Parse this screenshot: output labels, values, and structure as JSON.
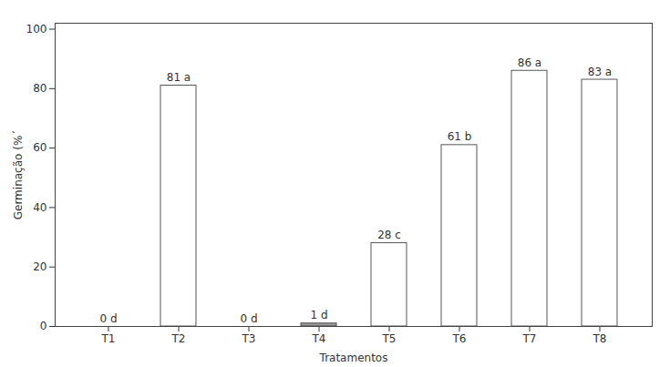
{
  "chart_data": {
    "type": "bar",
    "xlabel": "Tratamentos",
    "ylabel": "Germinação (%´",
    "categories": [
      "T1",
      "T2",
      "T3",
      "T4",
      "T5",
      "T6",
      "T7",
      "T8"
    ],
    "values": [
      0,
      81,
      0,
      1,
      28,
      61,
      86,
      83
    ],
    "value_labels": [
      "0 d",
      "81 a",
      "0 d",
      "1 d",
      "28 c",
      "61 b",
      "86 a",
      "83 a"
    ],
    "colors": [
      "#ffffff",
      "#ffffff",
      "#ffffff",
      "#999999",
      "#ffffff",
      "#ffffff",
      "#ffffff",
      "#ffffff"
    ],
    "ylim": [
      0,
      102
    ],
    "yticks": [
      0,
      20,
      40,
      60,
      80,
      100
    ],
    "grid": false,
    "data_labels": true
  }
}
